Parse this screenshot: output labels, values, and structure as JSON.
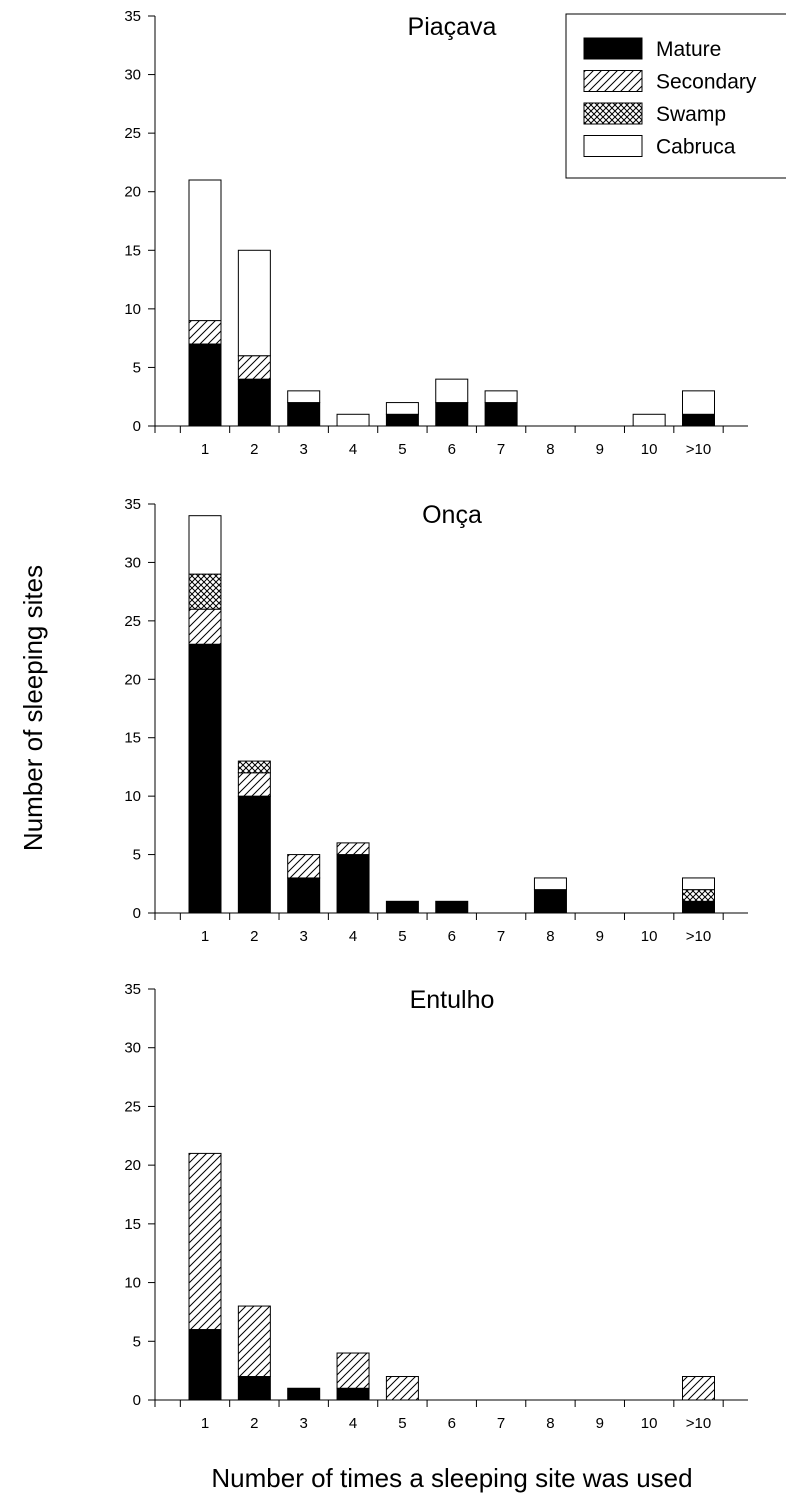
{
  "colors": {
    "mature": "#000000",
    "secondary": "#ffffff",
    "swamp": "#ffffff",
    "cabruca": "#ffffff",
    "axis": "#000000"
  },
  "legend": {
    "placement": "top-right",
    "items": [
      {
        "key": "mature",
        "label": "Mature",
        "fill": "solid-black"
      },
      {
        "key": "secondary",
        "label": "Secondary",
        "fill": "diagonal-hatch"
      },
      {
        "key": "swamp",
        "label": "Swamp",
        "fill": "cross-hatch"
      },
      {
        "key": "cabruca",
        "label": "Cabruca",
        "fill": "white"
      }
    ]
  },
  "xlabel": "Number of times a sleeping site was used",
  "ylabel": "Number of sleeping sites",
  "chart_data": [
    {
      "type": "bar",
      "stacked": true,
      "title": "Piaçava",
      "categories": [
        "1",
        "2",
        "3",
        "4",
        "5",
        "6",
        "7",
        "8",
        "9",
        "10",
        ">10"
      ],
      "ylim": [
        0,
        35
      ],
      "yticks": [
        0,
        5,
        10,
        15,
        20,
        25,
        30,
        35
      ],
      "grid": false,
      "series": [
        {
          "name": "Mature",
          "values": [
            7,
            4,
            2,
            0,
            1,
            2,
            2,
            0,
            0,
            0,
            1
          ]
        },
        {
          "name": "Secondary",
          "values": [
            2,
            2,
            0,
            0,
            0,
            0,
            0,
            0,
            0,
            0,
            0
          ]
        },
        {
          "name": "Swamp",
          "values": [
            0,
            0,
            0,
            0,
            0,
            0,
            0,
            0,
            0,
            0,
            0
          ]
        },
        {
          "name": "Cabruca",
          "values": [
            12,
            9,
            1,
            1,
            1,
            2,
            1,
            0,
            0,
            1,
            2
          ]
        }
      ]
    },
    {
      "type": "bar",
      "stacked": true,
      "title": "Onça",
      "categories": [
        "1",
        "2",
        "3",
        "4",
        "5",
        "6",
        "7",
        "8",
        "9",
        "10",
        ">10"
      ],
      "ylim": [
        0,
        35
      ],
      "yticks": [
        0,
        5,
        10,
        15,
        20,
        25,
        30,
        35
      ],
      "grid": false,
      "series": [
        {
          "name": "Mature",
          "values": [
            23,
            10,
            3,
            5,
            1,
            1,
            0,
            2,
            0,
            0,
            1
          ]
        },
        {
          "name": "Secondary",
          "values": [
            3,
            2,
            2,
            1,
            0,
            0,
            0,
            0,
            0,
            0,
            0
          ]
        },
        {
          "name": "Swamp",
          "values": [
            3,
            1,
            0,
            0,
            0,
            0,
            0,
            0,
            0,
            0,
            1
          ]
        },
        {
          "name": "Cabruca",
          "values": [
            5,
            0,
            0,
            0,
            0,
            0,
            0,
            1,
            0,
            0,
            1
          ]
        }
      ]
    },
    {
      "type": "bar",
      "stacked": true,
      "title": "Entulho",
      "categories": [
        "1",
        "2",
        "3",
        "4",
        "5",
        "6",
        "7",
        "8",
        "9",
        "10",
        ">10"
      ],
      "ylim": [
        0,
        35
      ],
      "yticks": [
        0,
        5,
        10,
        15,
        20,
        25,
        30,
        35
      ],
      "grid": false,
      "series": [
        {
          "name": "Mature",
          "values": [
            6,
            2,
            1,
            1,
            0,
            0,
            0,
            0,
            0,
            0,
            0
          ]
        },
        {
          "name": "Secondary",
          "values": [
            15,
            6,
            0,
            3,
            2,
            0,
            0,
            0,
            0,
            0,
            2
          ]
        },
        {
          "name": "Swamp",
          "values": [
            0,
            0,
            0,
            0,
            0,
            0,
            0,
            0,
            0,
            0,
            0
          ]
        },
        {
          "name": "Cabruca",
          "values": [
            0,
            0,
            0,
            0,
            0,
            0,
            0,
            0,
            0,
            0,
            0
          ]
        }
      ]
    }
  ]
}
